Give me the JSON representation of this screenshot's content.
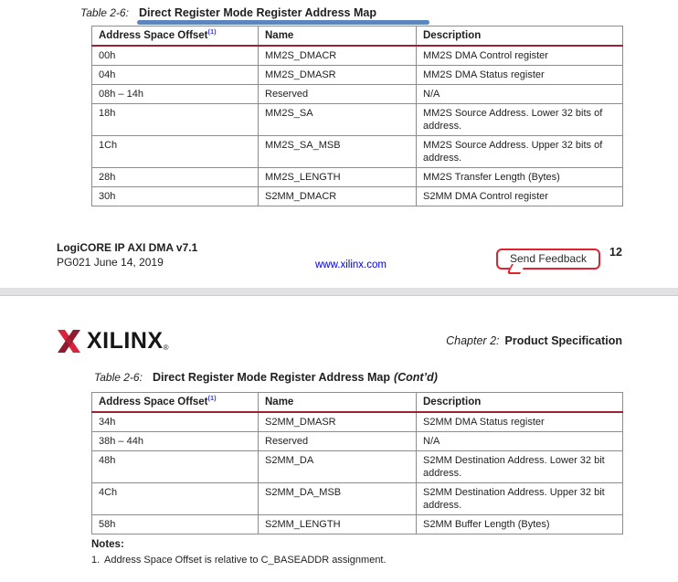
{
  "page1": {
    "caption": {
      "label": "Table 2-6:",
      "title": "Direct Register Mode Register Address Map"
    },
    "table": {
      "headers": [
        "Address Space Offset",
        "Name",
        "Description"
      ],
      "header_superscript": "(1)",
      "rows": [
        [
          "00h",
          "MM2S_DMACR",
          "MM2S DMA Control register"
        ],
        [
          "04h",
          "MM2S_DMASR",
          "MM2S DMA Status register"
        ],
        [
          "08h – 14h",
          "Reserved",
          "N/A"
        ],
        [
          "18h",
          "MM2S_SA",
          "MM2S Source Address. Lower 32 bits of address."
        ],
        [
          "1Ch",
          "MM2S_SA_MSB",
          "MM2S Source Address. Upper 32 bits of address."
        ],
        [
          "28h",
          "MM2S_LENGTH",
          "MM2S Transfer Length (Bytes)"
        ],
        [
          "30h",
          "S2MM_DMACR",
          "S2MM DMA Control register"
        ]
      ]
    },
    "footer": {
      "product": "LogiCORE IP AXI DMA v7.1",
      "doc_date": "PG021 June 14, 2019",
      "link": "www.xilinx.com",
      "feedback_label": "Send Feedback",
      "page_number": "12"
    }
  },
  "page2": {
    "logo_text": "XILINX",
    "logo_registered": "®",
    "chapter": {
      "label": "Chapter 2:",
      "title": "Product Specification"
    },
    "caption": {
      "label": "Table 2-6:",
      "title": "Direct Register Mode Register Address Map",
      "contd": "(Cont’d)"
    },
    "table": {
      "headers": [
        "Address Space Offset",
        "Name",
        "Description"
      ],
      "header_superscript": "(1)",
      "rows": [
        [
          "34h",
          "S2MM_DMASR",
          "S2MM DMA Status register"
        ],
        [
          "38h – 44h",
          "Reserved",
          "N/A"
        ],
        [
          "48h",
          "S2MM_DA",
          "S2MM Destination Address. Lower 32 bit address."
        ],
        [
          "4Ch",
          "S2MM_DA_MSB",
          "S2MM Destination Address. Upper 32 bit address."
        ],
        [
          "58h",
          "S2MM_LENGTH",
          "S2MM Buffer Length (Bytes)"
        ]
      ]
    },
    "notes": {
      "heading": "Notes:",
      "items": [
        {
          "num": "1.",
          "text": "Address Space Offset is relative to C_BASEADDR assignment."
        }
      ]
    }
  },
  "colors": {
    "table-header-rule": "#9e2235",
    "link-blue": "#0000e0",
    "annotation-blue": "#4d7cb8",
    "feedback-red": "#e0232e",
    "logo-red": "#d8233a",
    "logo-dark-red": "#8e1b2e",
    "footnote-blue": "#4343c8",
    "divider-gray": "#e1e1e4",
    "table-border-gray": "#8c8c8c"
  }
}
